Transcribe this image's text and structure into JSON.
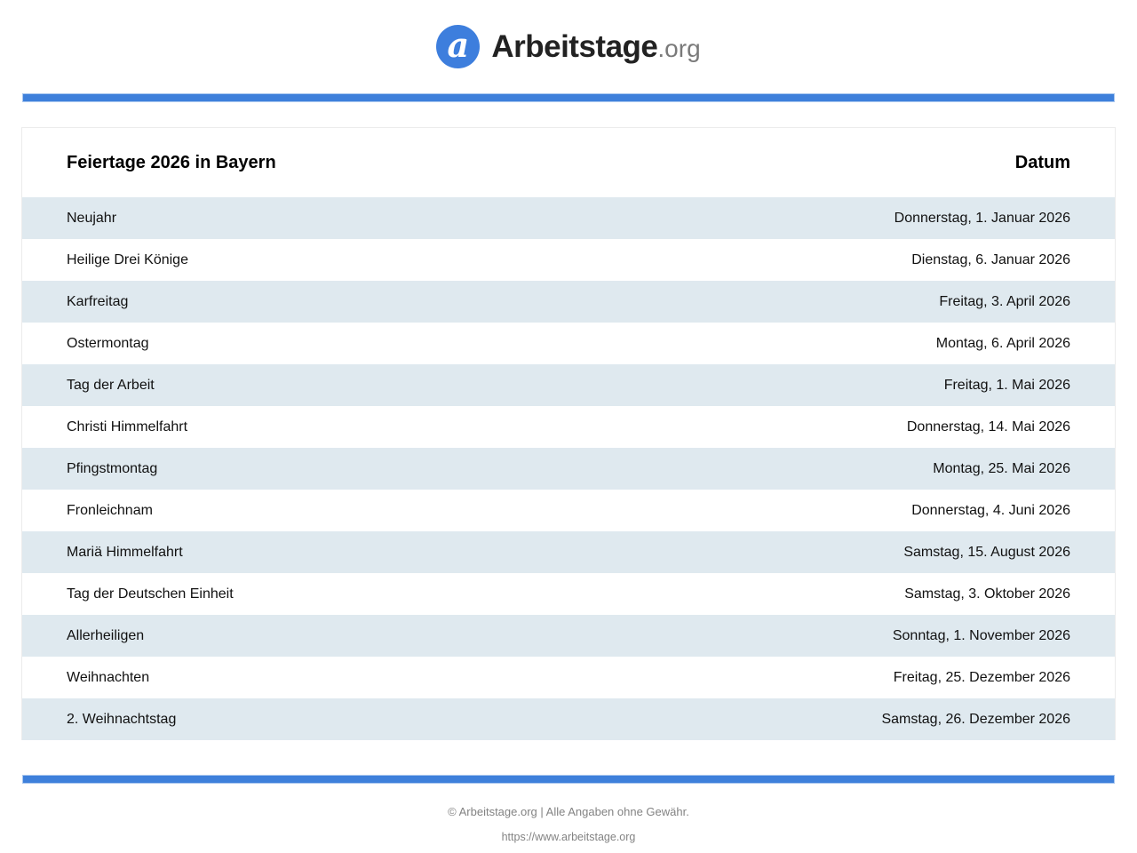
{
  "logo": {
    "mark_letter": "a",
    "brand": "Arbeitstage",
    "tld": ".org"
  },
  "table": {
    "title": "Feiertage 2026 in Bayern",
    "date_header": "Datum",
    "rows": [
      {
        "name": "Neujahr",
        "date": "Donnerstag, 1. Januar 2026"
      },
      {
        "name": "Heilige Drei Könige",
        "date": "Dienstag, 6. Januar 2026"
      },
      {
        "name": "Karfreitag",
        "date": "Freitag, 3. April 2026"
      },
      {
        "name": "Ostermontag",
        "date": "Montag, 6. April 2026"
      },
      {
        "name": "Tag der Arbeit",
        "date": "Freitag, 1. Mai 2026"
      },
      {
        "name": "Christi Himmelfahrt",
        "date": "Donnerstag, 14. Mai 2026"
      },
      {
        "name": "Pfingstmontag",
        "date": "Montag, 25. Mai 2026"
      },
      {
        "name": "Fronleichnam",
        "date": "Donnerstag, 4. Juni 2026"
      },
      {
        "name": "Mariä Himmelfahrt",
        "date": "Samstag, 15. August 2026"
      },
      {
        "name": "Tag der Deutschen Einheit",
        "date": "Samstag, 3. Oktober 2026"
      },
      {
        "name": "Allerheiligen",
        "date": "Sonntag, 1. November 2026"
      },
      {
        "name": "Weihnachten",
        "date": "Freitag, 25. Dezember 2026"
      },
      {
        "name": "2. Weihnachtstag",
        "date": "Samstag, 26. Dezember 2026"
      }
    ]
  },
  "footer": {
    "copyright": "© Arbeitstage.org | Alle Angaben ohne Gewähr.",
    "url": "https://www.arbeitstage.org"
  },
  "colors": {
    "accent_blue": "#3e80db",
    "accent_blue_light": "#a9c7ef",
    "logo_blue": "#3d7edd",
    "stripe": "#dfe9ef",
    "row_text": "#111111",
    "footer_text": "#838383",
    "brand_gray": "#7a7a7a"
  }
}
